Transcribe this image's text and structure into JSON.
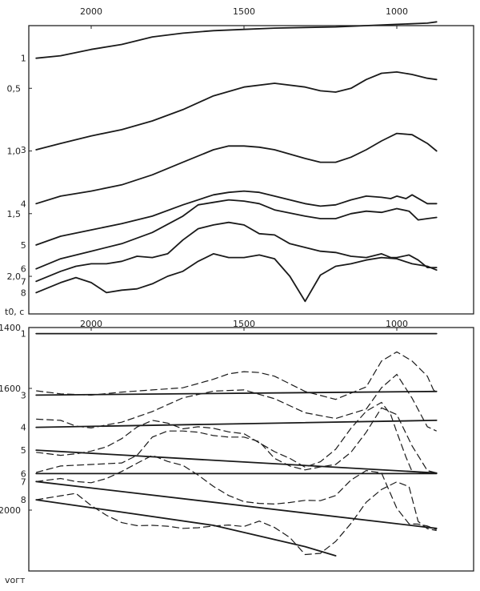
{
  "chart_data": [
    {
      "type": "line",
      "title": "",
      "xlabel": "",
      "ylabel": "t0, c",
      "x_ticks": [
        "2000",
        "1500",
        "1000"
      ],
      "y_ticks": [
        "0,5",
        "1,0",
        "1,5",
        "2,0"
      ],
      "xlim": [
        2200,
        850
      ],
      "ylim": [
        0,
        2.3
      ],
      "series": [
        {
          "label": "1",
          "x": [
            2180,
            2100,
            2000,
            1900,
            1800,
            1700,
            1600,
            1500,
            1400,
            1300,
            1200,
            1100,
            1000,
            900,
            870
          ],
          "y": [
            0.26,
            0.24,
            0.19,
            0.15,
            0.09,
            0.06,
            0.04,
            0.03,
            0.02,
            0.015,
            0.01,
            0.0,
            -0.01,
            -0.02,
            -0.03
          ]
        },
        {
          "label": "3",
          "x": [
            2180,
            2100,
            2000,
            1900,
            1800,
            1700,
            1600,
            1500,
            1400,
            1300,
            1250,
            1200,
            1150,
            1100,
            1050,
            1000,
            950,
            900,
            870
          ],
          "y": [
            0.99,
            0.94,
            0.88,
            0.83,
            0.76,
            0.67,
            0.56,
            0.49,
            0.46,
            0.49,
            0.52,
            0.53,
            0.5,
            0.43,
            0.38,
            0.37,
            0.39,
            0.42,
            0.43
          ]
        },
        {
          "label": "4",
          "x": [
            2180,
            2100,
            2000,
            1900,
            1800,
            1700,
            1600,
            1550,
            1500,
            1450,
            1400,
            1300,
            1250,
            1200,
            1150,
            1100,
            1050,
            1000,
            950,
            900,
            870
          ],
          "y": [
            1.42,
            1.36,
            1.32,
            1.27,
            1.19,
            1.09,
            0.99,
            0.96,
            0.96,
            0.97,
            0.99,
            1.06,
            1.09,
            1.09,
            1.05,
            0.99,
            0.92,
            0.86,
            0.87,
            0.94,
            1.0
          ]
        },
        {
          "label": "5",
          "x": [
            2180,
            2100,
            2000,
            1900,
            1800,
            1700,
            1600,
            1550,
            1500,
            1450,
            1400,
            1300,
            1250,
            1200,
            1150,
            1100,
            1050,
            1020,
            1000,
            970,
            950,
            900,
            870
          ],
          "y": [
            1.75,
            1.68,
            1.63,
            1.58,
            1.52,
            1.43,
            1.35,
            1.33,
            1.32,
            1.33,
            1.36,
            1.42,
            1.44,
            1.43,
            1.39,
            1.36,
            1.37,
            1.38,
            1.36,
            1.38,
            1.35,
            1.42,
            1.42
          ]
        },
        {
          "label": "6",
          "x": [
            2180,
            2100,
            2000,
            1900,
            1800,
            1700,
            1650,
            1600,
            1550,
            1500,
            1450,
            1400,
            1300,
            1250,
            1200,
            1150,
            1100,
            1050,
            1000,
            960,
            930,
            900,
            870
          ],
          "y": [
            1.94,
            1.86,
            1.8,
            1.74,
            1.65,
            1.52,
            1.43,
            1.41,
            1.39,
            1.4,
            1.42,
            1.47,
            1.52,
            1.54,
            1.54,
            1.5,
            1.48,
            1.49,
            1.46,
            1.48,
            1.55,
            1.54,
            1.53
          ]
        },
        {
          "label": "7",
          "x": [
            2180,
            2100,
            2050,
            2000,
            1950,
            1900,
            1850,
            1800,
            1750,
            1700,
            1650,
            1600,
            1550,
            1500,
            1450,
            1400,
            1350,
            1300,
            1250,
            1200,
            1150,
            1100,
            1050,
            1020,
            1000,
            960,
            930,
            900,
            870
          ],
          "y": [
            2.04,
            1.96,
            1.92,
            1.9,
            1.9,
            1.88,
            1.84,
            1.85,
            1.82,
            1.71,
            1.62,
            1.59,
            1.57,
            1.59,
            1.66,
            1.67,
            1.74,
            1.77,
            1.8,
            1.81,
            1.84,
            1.85,
            1.82,
            1.85,
            1.85,
            1.83,
            1.87,
            1.93,
            1.93
          ]
        },
        {
          "label": "8",
          "x": [
            2180,
            2100,
            2050,
            2000,
            1950,
            1900,
            1850,
            1800,
            1750,
            1700,
            1650,
            1600,
            1550,
            1500,
            1450,
            1400,
            1350,
            1300,
            1250,
            1200,
            1150,
            1100,
            1050,
            1000,
            950,
            900,
            870
          ],
          "y": [
            2.13,
            2.05,
            2.01,
            2.05,
            2.13,
            2.11,
            2.1,
            2.06,
            2.0,
            1.96,
            1.88,
            1.82,
            1.85,
            1.85,
            1.83,
            1.86,
            2.0,
            2.2,
            1.99,
            1.92,
            1.9,
            1.87,
            1.85,
            1.86,
            1.9,
            1.92,
            1.95
          ]
        }
      ]
    },
    {
      "type": "line",
      "title": "",
      "xlabel": "",
      "ylabel": "vогт",
      "x_ticks": [
        "2000",
        "1500",
        "1000"
      ],
      "y_ticks": [
        "1400",
        "1600",
        "2000"
      ],
      "xlim": [
        2200,
        850
      ],
      "ylim": [
        1400,
        2200
      ],
      "series": [
        {
          "label": "1",
          "style": "solid",
          "x": [
            2180,
            870
          ],
          "y": [
            1420,
            1420
          ]
        },
        {
          "label": "3",
          "style": "solid",
          "x": [
            2180,
            870
          ],
          "y": [
            1622,
            1610
          ]
        },
        {
          "label": "3",
          "style": "dashed",
          "x": [
            2180,
            2100,
            2000,
            1900,
            1800,
            1700,
            1600,
            1550,
            1500,
            1450,
            1400,
            1300,
            1200,
            1100,
            1050,
            1000,
            950,
            900,
            880,
            870
          ],
          "y": [
            1608,
            1618,
            1622,
            1612,
            1605,
            1598,
            1570,
            1552,
            1545,
            1548,
            1560,
            1610,
            1636,
            1595,
            1510,
            1480,
            1510,
            1560,
            1605,
            1612
          ]
        },
        {
          "label": "4",
          "style": "solid",
          "x": [
            2180,
            870
          ],
          "y": [
            1728,
            1705
          ]
        },
        {
          "label": "4",
          "style": "dashed",
          "x": [
            2180,
            2100,
            2050,
            2000,
            1950,
            1900,
            1800,
            1700,
            1600,
            1500,
            1400,
            1300,
            1200,
            1100,
            1050,
            1000,
            950,
            900,
            870
          ],
          "y": [
            1701,
            1705,
            1724,
            1730,
            1720,
            1711,
            1676,
            1631,
            1609,
            1605,
            1634,
            1680,
            1699,
            1668,
            1598,
            1554,
            1632,
            1726,
            1740
          ]
        },
        {
          "label": "5",
          "style": "solid",
          "x": [
            2180,
            870
          ],
          "y": [
            1803,
            1878
          ]
        },
        {
          "label": "5",
          "style": "dashed",
          "x": [
            2180,
            2100,
            2050,
            2000,
            1950,
            1900,
            1850,
            1800,
            1750,
            1700,
            1650,
            1600,
            1550,
            1500,
            1450,
            1400,
            1350,
            1300,
            1250,
            1200,
            1150,
            1100,
            1050,
            1020,
            1000,
            970,
            950,
            900,
            870
          ],
          "y": [
            1810,
            1820,
            1815,
            1806,
            1792,
            1765,
            1727,
            1705,
            1714,
            1733,
            1726,
            1731,
            1743,
            1749,
            1779,
            1808,
            1830,
            1859,
            1841,
            1800,
            1731,
            1675,
            1646,
            1686,
            1744,
            1826,
            1873,
            1878,
            1880
          ]
        },
        {
          "label": "6",
          "style": "solid",
          "x": [
            2180,
            870
          ],
          "y": [
            1880,
            1880
          ]
        },
        {
          "label": "6",
          "style": "dashed",
          "x": [
            2180,
            2100,
            2000,
            1900,
            1850,
            1800,
            1750,
            1700,
            1650,
            1600,
            1550,
            1500,
            1450,
            1400,
            1350,
            1300,
            1250,
            1200,
            1150,
            1100,
            1050,
            1000,
            950,
            900,
            870
          ],
          "y": [
            1876,
            1855,
            1850,
            1845,
            1820,
            1760,
            1740,
            1740,
            1744,
            1755,
            1760,
            1760,
            1775,
            1830,
            1855,
            1868,
            1858,
            1850,
            1810,
            1744,
            1664,
            1686,
            1789,
            1870,
            1878
          ]
        },
        {
          "label": "7",
          "style": "solid",
          "x": [
            2180,
            870
          ],
          "y": [
            1906,
            2060
          ]
        },
        {
          "label": "7",
          "style": "dashed",
          "x": [
            2180,
            2100,
            2050,
            2000,
            1950,
            1900,
            1850,
            1800,
            1750,
            1700,
            1650,
            1600,
            1550,
            1500,
            1450,
            1400,
            1350,
            1300,
            1250,
            1200,
            1150,
            1100,
            1050,
            1000,
            960,
            930,
            900,
            870
          ],
          "y": [
            1906,
            1896,
            1906,
            1910,
            1896,
            1873,
            1846,
            1820,
            1840,
            1853,
            1885,
            1922,
            1952,
            1972,
            1978,
            1980,
            1975,
            1968,
            1969,
            1952,
            1901,
            1870,
            1878,
            1994,
            2045,
            2046,
            2052,
            2064
          ]
        },
        {
          "label": "8",
          "style": "solid",
          "x": [
            2180,
            1600,
            1300,
            1200
          ],
          "y": [
            1966,
            2050,
            2120,
            2150
          ]
        },
        {
          "label": "8",
          "style": "dashed",
          "x": [
            2180,
            2100,
            2050,
            2000,
            1950,
            1900,
            1850,
            1800,
            1750,
            1700,
            1650,
            1600,
            1550,
            1500,
            1450,
            1400,
            1350,
            1300,
            1250,
            1200,
            1150,
            1100,
            1050,
            1000,
            960,
            930,
            900,
            870
          ],
          "y": [
            1966,
            1953,
            1945,
            1985,
            2017,
            2041,
            2051,
            2050,
            2053,
            2060,
            2058,
            2052,
            2049,
            2054,
            2036,
            2057,
            2090,
            2146,
            2142,
            2103,
            2044,
            1974,
            1932,
            1907,
            1923,
            2037,
            2061,
            2067
          ]
        }
      ]
    }
  ]
}
